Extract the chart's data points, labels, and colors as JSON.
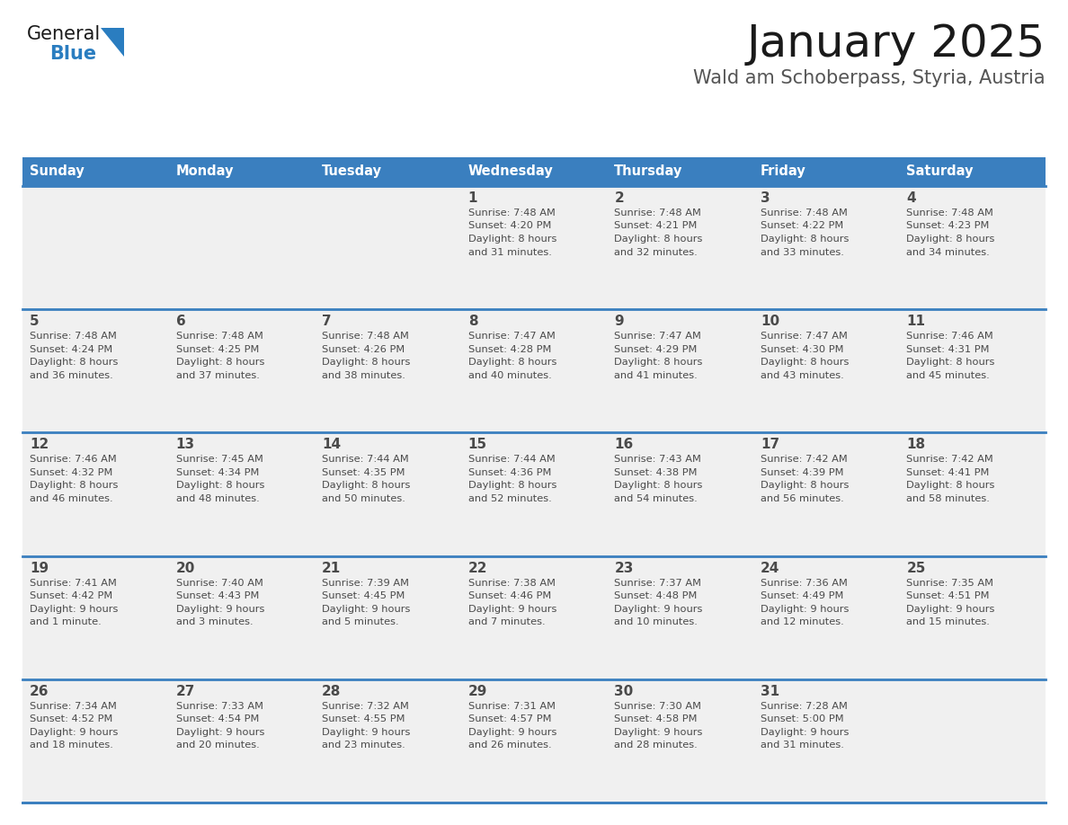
{
  "title": "January 2025",
  "subtitle": "Wald am Schoberpass, Styria, Austria",
  "days_of_week": [
    "Sunday",
    "Monday",
    "Tuesday",
    "Wednesday",
    "Thursday",
    "Friday",
    "Saturday"
  ],
  "header_bg": "#3a7fbf",
  "header_text": "#ffffff",
  "cell_bg_light": "#f0f0f0",
  "row_separator_color": "#3a7fbf",
  "text_color": "#4a4a4a",
  "title_color": "#1a1a1a",
  "subtitle_color": "#555555",
  "logo_general_color": "#1a1a1a",
  "logo_blue_color": "#2a7dc0",
  "calendar_data": [
    [
      null,
      null,
      null,
      {
        "day": 1,
        "sunrise": "7:48 AM",
        "sunset": "4:20 PM",
        "daylight": "8 hours",
        "daylight2": "and 31 minutes."
      },
      {
        "day": 2,
        "sunrise": "7:48 AM",
        "sunset": "4:21 PM",
        "daylight": "8 hours",
        "daylight2": "and 32 minutes."
      },
      {
        "day": 3,
        "sunrise": "7:48 AM",
        "sunset": "4:22 PM",
        "daylight": "8 hours",
        "daylight2": "and 33 minutes."
      },
      {
        "day": 4,
        "sunrise": "7:48 AM",
        "sunset": "4:23 PM",
        "daylight": "8 hours",
        "daylight2": "and 34 minutes."
      }
    ],
    [
      {
        "day": 5,
        "sunrise": "7:48 AM",
        "sunset": "4:24 PM",
        "daylight": "8 hours",
        "daylight2": "and 36 minutes."
      },
      {
        "day": 6,
        "sunrise": "7:48 AM",
        "sunset": "4:25 PM",
        "daylight": "8 hours",
        "daylight2": "and 37 minutes."
      },
      {
        "day": 7,
        "sunrise": "7:48 AM",
        "sunset": "4:26 PM",
        "daylight": "8 hours",
        "daylight2": "and 38 minutes."
      },
      {
        "day": 8,
        "sunrise": "7:47 AM",
        "sunset": "4:28 PM",
        "daylight": "8 hours",
        "daylight2": "and 40 minutes."
      },
      {
        "day": 9,
        "sunrise": "7:47 AM",
        "sunset": "4:29 PM",
        "daylight": "8 hours",
        "daylight2": "and 41 minutes."
      },
      {
        "day": 10,
        "sunrise": "7:47 AM",
        "sunset": "4:30 PM",
        "daylight": "8 hours",
        "daylight2": "and 43 minutes."
      },
      {
        "day": 11,
        "sunrise": "7:46 AM",
        "sunset": "4:31 PM",
        "daylight": "8 hours",
        "daylight2": "and 45 minutes."
      }
    ],
    [
      {
        "day": 12,
        "sunrise": "7:46 AM",
        "sunset": "4:32 PM",
        "daylight": "8 hours",
        "daylight2": "and 46 minutes."
      },
      {
        "day": 13,
        "sunrise": "7:45 AM",
        "sunset": "4:34 PM",
        "daylight": "8 hours",
        "daylight2": "and 48 minutes."
      },
      {
        "day": 14,
        "sunrise": "7:44 AM",
        "sunset": "4:35 PM",
        "daylight": "8 hours",
        "daylight2": "and 50 minutes."
      },
      {
        "day": 15,
        "sunrise": "7:44 AM",
        "sunset": "4:36 PM",
        "daylight": "8 hours",
        "daylight2": "and 52 minutes."
      },
      {
        "day": 16,
        "sunrise": "7:43 AM",
        "sunset": "4:38 PM",
        "daylight": "8 hours",
        "daylight2": "and 54 minutes."
      },
      {
        "day": 17,
        "sunrise": "7:42 AM",
        "sunset": "4:39 PM",
        "daylight": "8 hours",
        "daylight2": "and 56 minutes."
      },
      {
        "day": 18,
        "sunrise": "7:42 AM",
        "sunset": "4:41 PM",
        "daylight": "8 hours",
        "daylight2": "and 58 minutes."
      }
    ],
    [
      {
        "day": 19,
        "sunrise": "7:41 AM",
        "sunset": "4:42 PM",
        "daylight": "9 hours",
        "daylight2": "and 1 minute."
      },
      {
        "day": 20,
        "sunrise": "7:40 AM",
        "sunset": "4:43 PM",
        "daylight": "9 hours",
        "daylight2": "and 3 minutes."
      },
      {
        "day": 21,
        "sunrise": "7:39 AM",
        "sunset": "4:45 PM",
        "daylight": "9 hours",
        "daylight2": "and 5 minutes."
      },
      {
        "day": 22,
        "sunrise": "7:38 AM",
        "sunset": "4:46 PM",
        "daylight": "9 hours",
        "daylight2": "and 7 minutes."
      },
      {
        "day": 23,
        "sunrise": "7:37 AM",
        "sunset": "4:48 PM",
        "daylight": "9 hours",
        "daylight2": "and 10 minutes."
      },
      {
        "day": 24,
        "sunrise": "7:36 AM",
        "sunset": "4:49 PM",
        "daylight": "9 hours",
        "daylight2": "and 12 minutes."
      },
      {
        "day": 25,
        "sunrise": "7:35 AM",
        "sunset": "4:51 PM",
        "daylight": "9 hours",
        "daylight2": "and 15 minutes."
      }
    ],
    [
      {
        "day": 26,
        "sunrise": "7:34 AM",
        "sunset": "4:52 PM",
        "daylight": "9 hours",
        "daylight2": "and 18 minutes."
      },
      {
        "day": 27,
        "sunrise": "7:33 AM",
        "sunset": "4:54 PM",
        "daylight": "9 hours",
        "daylight2": "and 20 minutes."
      },
      {
        "day": 28,
        "sunrise": "7:32 AM",
        "sunset": "4:55 PM",
        "daylight": "9 hours",
        "daylight2": "and 23 minutes."
      },
      {
        "day": 29,
        "sunrise": "7:31 AM",
        "sunset": "4:57 PM",
        "daylight": "9 hours",
        "daylight2": "and 26 minutes."
      },
      {
        "day": 30,
        "sunrise": "7:30 AM",
        "sunset": "4:58 PM",
        "daylight": "9 hours",
        "daylight2": "and 28 minutes."
      },
      {
        "day": 31,
        "sunrise": "7:28 AM",
        "sunset": "5:00 PM",
        "daylight": "9 hours",
        "daylight2": "and 31 minutes."
      },
      null
    ]
  ]
}
